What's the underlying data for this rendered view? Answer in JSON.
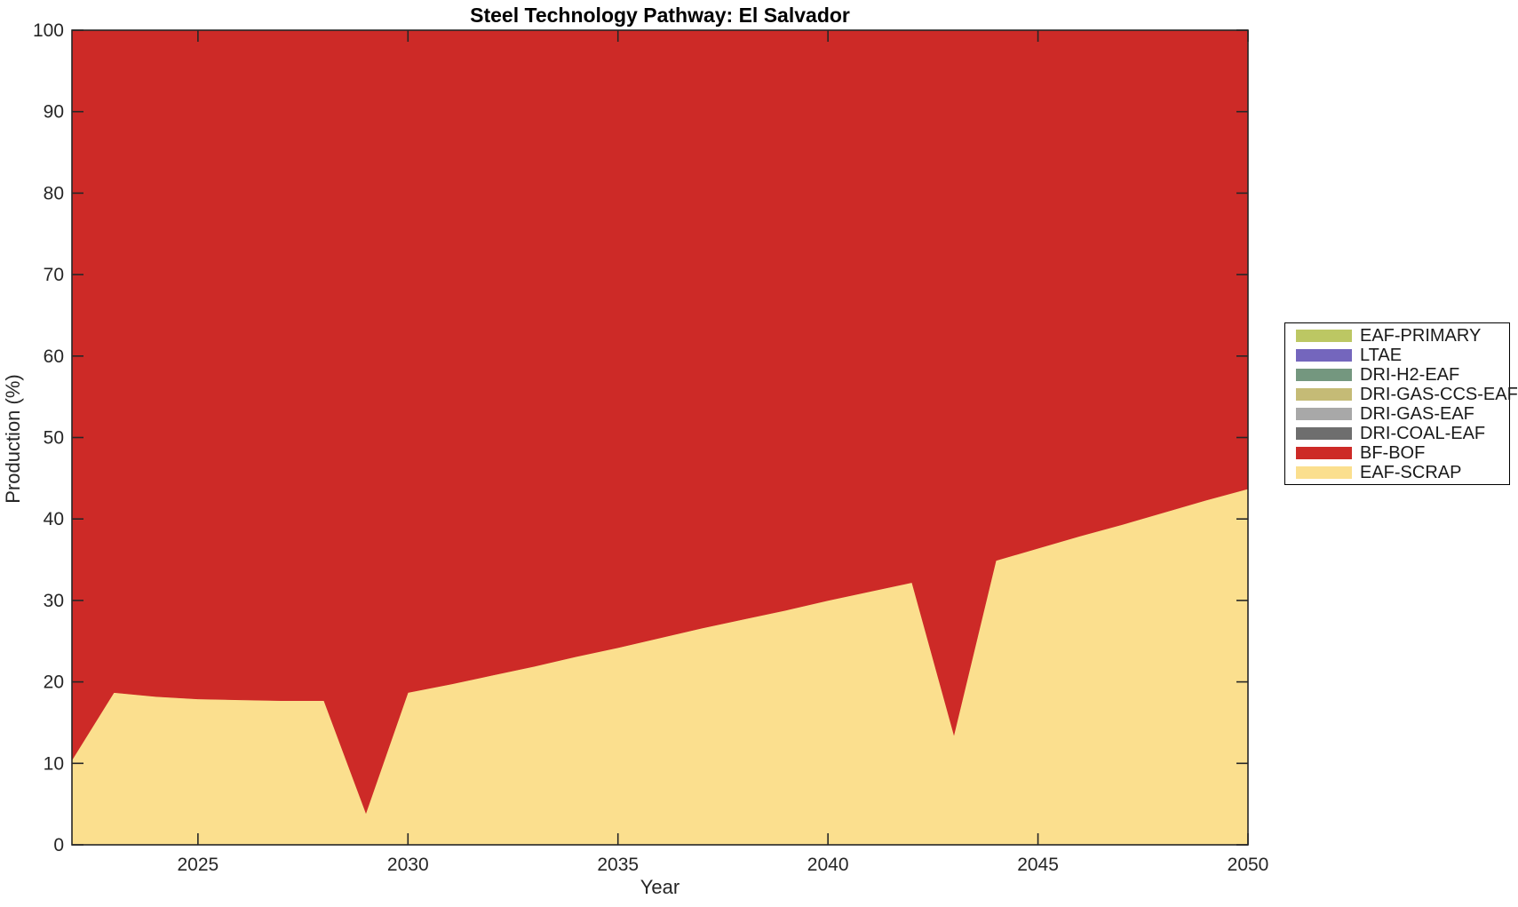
{
  "chart": {
    "title": "Steel Technology Pathway: El Salvador",
    "xlabel": "Year",
    "ylabel": "Production (%)"
  },
  "chart_data": {
    "type": "area",
    "stacked": true,
    "draw_order": "bottom-to-top",
    "title": "Steel Technology Pathway: El Salvador",
    "xlabel": "Year",
    "ylabel": "Production (%)",
    "xlim": [
      2022,
      2050
    ],
    "ylim": [
      0,
      100
    ],
    "x_ticks": [
      2025,
      2030,
      2035,
      2040,
      2045,
      2050
    ],
    "y_ticks": [
      0,
      10,
      20,
      30,
      40,
      50,
      60,
      70,
      80,
      90,
      100
    ],
    "grid": false,
    "legend_position": "outside-right",
    "x": [
      2022,
      2023,
      2024,
      2025,
      2026,
      2027,
      2028,
      2029,
      2030,
      2031,
      2032,
      2033,
      2034,
      2035,
      2036,
      2037,
      2038,
      2039,
      2040,
      2041,
      2042,
      2043,
      2044,
      2045,
      2046,
      2047,
      2048,
      2049,
      2050
    ],
    "series": [
      {
        "name": "EAF-SCRAP",
        "color": "#fbdf8e",
        "values": [
          10.4,
          18.7,
          18.2,
          17.9,
          17.8,
          17.7,
          17.7,
          3.9,
          18.7,
          19.7,
          20.8,
          21.9,
          23.1,
          24.2,
          25.4,
          26.6,
          27.7,
          28.8,
          30.0,
          31.1,
          32.2,
          13.5,
          34.9,
          36.4,
          37.9,
          39.3,
          40.8,
          42.3,
          43.7
        ]
      },
      {
        "name": "BF-BOF",
        "color": "#cd2a27",
        "values": [
          89.6,
          81.3,
          81.8,
          82.1,
          82.2,
          82.3,
          82.3,
          96.1,
          81.3,
          80.3,
          79.2,
          78.1,
          76.9,
          75.8,
          74.6,
          73.4,
          72.3,
          71.2,
          70.0,
          68.9,
          67.8,
          86.5,
          65.1,
          63.6,
          62.1,
          60.7,
          59.2,
          57.7,
          56.3
        ]
      },
      {
        "name": "DRI-COAL-EAF",
        "color": "#6e6e6e",
        "values": [
          0,
          0,
          0,
          0,
          0,
          0,
          0,
          0,
          0,
          0,
          0,
          0,
          0,
          0,
          0,
          0,
          0,
          0,
          0,
          0,
          0,
          0,
          0,
          0,
          0,
          0,
          0,
          0,
          0
        ]
      },
      {
        "name": "DRI-GAS-EAF",
        "color": "#a8a8a8",
        "values": [
          0,
          0,
          0,
          0,
          0,
          0,
          0,
          0,
          0,
          0,
          0,
          0,
          0,
          0,
          0,
          0,
          0,
          0,
          0,
          0,
          0,
          0,
          0,
          0,
          0,
          0,
          0,
          0,
          0
        ]
      },
      {
        "name": "DRI-GAS-CCS-EAF",
        "color": "#c5bb76",
        "values": [
          0,
          0,
          0,
          0,
          0,
          0,
          0,
          0,
          0,
          0,
          0,
          0,
          0,
          0,
          0,
          0,
          0,
          0,
          0,
          0,
          0,
          0,
          0,
          0,
          0,
          0,
          0,
          0,
          0
        ]
      },
      {
        "name": "DRI-H2-EAF",
        "color": "#74977f",
        "values": [
          0,
          0,
          0,
          0,
          0,
          0,
          0,
          0,
          0,
          0,
          0,
          0,
          0,
          0,
          0,
          0,
          0,
          0,
          0,
          0,
          0,
          0,
          0,
          0,
          0,
          0,
          0,
          0,
          0
        ]
      },
      {
        "name": "LTAE",
        "color": "#7466bd",
        "values": [
          0,
          0,
          0,
          0,
          0,
          0,
          0,
          0,
          0,
          0,
          0,
          0,
          0,
          0,
          0,
          0,
          0,
          0,
          0,
          0,
          0,
          0,
          0,
          0,
          0,
          0,
          0,
          0,
          0
        ]
      },
      {
        "name": "EAF-PRIMARY",
        "color": "#bcc763",
        "values": [
          0,
          0,
          0,
          0,
          0,
          0,
          0,
          0,
          0,
          0,
          0,
          0,
          0,
          0,
          0,
          0,
          0,
          0,
          0,
          0,
          0,
          0,
          0,
          0,
          0,
          0,
          0,
          0,
          0
        ]
      }
    ]
  },
  "legend": {
    "items": [
      {
        "label": "EAF-PRIMARY",
        "color": "#bcc763"
      },
      {
        "label": "LTAE",
        "color": "#7466bd"
      },
      {
        "label": "DRI-H2-EAF",
        "color": "#74977f"
      },
      {
        "label": "DRI-GAS-CCS-EAF",
        "color": "#c5bb76"
      },
      {
        "label": "DRI-GAS-EAF",
        "color": "#a8a8a8"
      },
      {
        "label": "DRI-COAL-EAF",
        "color": "#6e6e6e"
      },
      {
        "label": "BF-BOF",
        "color": "#cd2a27"
      },
      {
        "label": "EAF-SCRAP",
        "color": "#fbdf8e"
      }
    ]
  },
  "colors": {
    "background": "#ffffff",
    "axis_line": "#262626",
    "tick_text": "#262626",
    "title_text": "#000000"
  }
}
